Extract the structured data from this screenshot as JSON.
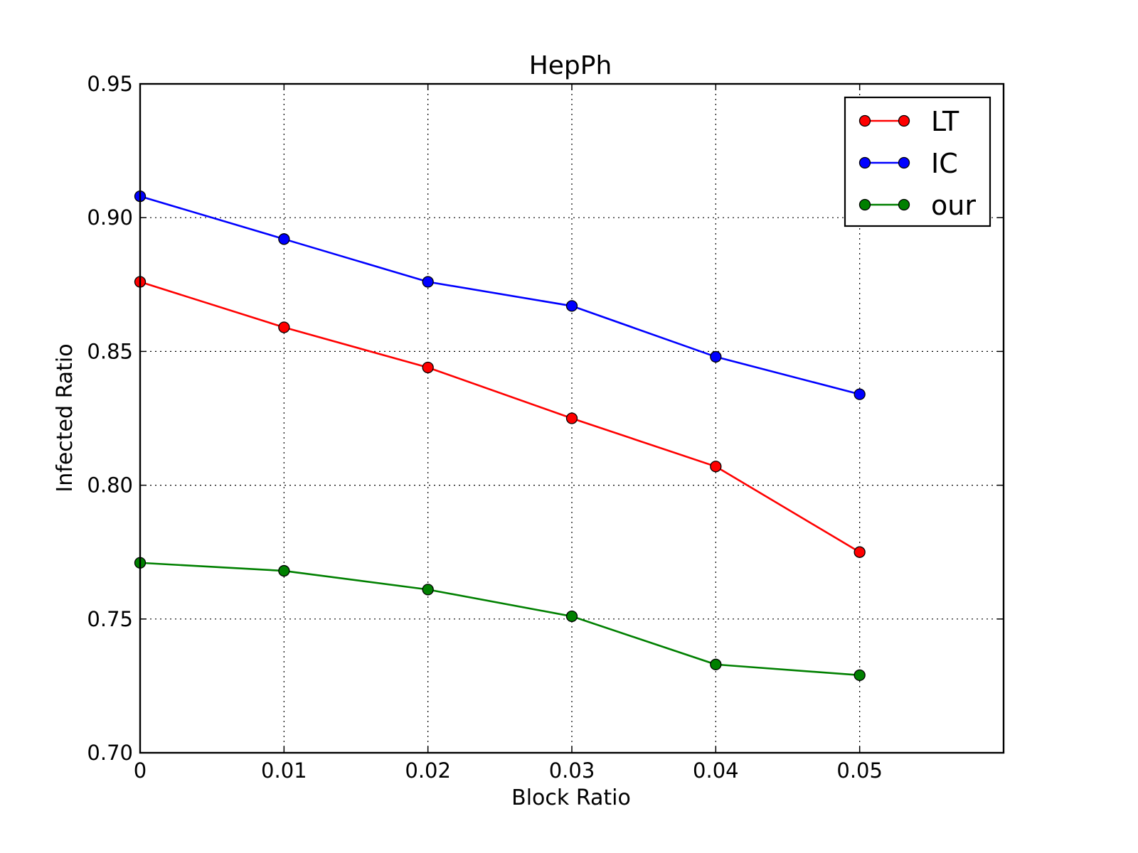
{
  "chart_data": {
    "type": "line",
    "title": "HepPh",
    "xlabel": "Block Ratio",
    "ylabel": "Infected Ratio",
    "x": [
      0,
      0.01,
      0.02,
      0.03,
      0.04,
      0.05
    ],
    "xlim": [
      0,
      0.06
    ],
    "ylim": [
      0.7,
      0.95
    ],
    "xticks": [
      "0",
      "0.01",
      "0.02",
      "0.03",
      "0.04",
      "0.05"
    ],
    "yticks": [
      "0.70",
      "0.75",
      "0.80",
      "0.85",
      "0.90",
      "0.95"
    ],
    "grid": true,
    "legend_position": "top-right",
    "series": [
      {
        "name": "LT",
        "color": "#ff0000",
        "values": [
          0.876,
          0.859,
          0.844,
          0.825,
          0.807,
          0.775
        ]
      },
      {
        "name": "IC",
        "color": "#0000ff",
        "values": [
          0.908,
          0.892,
          0.876,
          0.867,
          0.848,
          0.834
        ]
      },
      {
        "name": "our",
        "color": "#008000",
        "values": [
          0.771,
          0.768,
          0.761,
          0.751,
          0.733,
          0.729
        ]
      }
    ]
  }
}
